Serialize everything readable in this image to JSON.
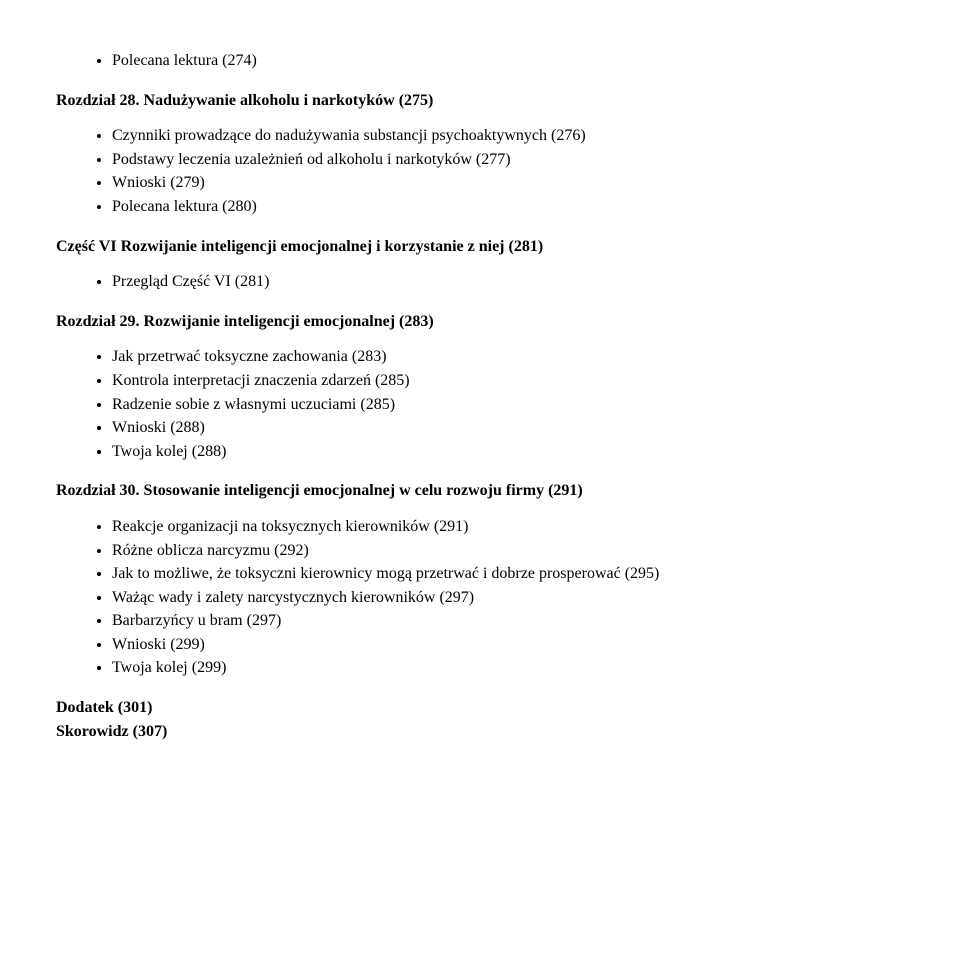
{
  "top_list": [
    "Polecana lektura (274)"
  ],
  "ch28": {
    "heading": "Rozdział 28. Nadużywanie alkoholu i narkotyków (275)",
    "items": [
      "Czynniki prowadzące do nadużywania substancji psychoaktywnych (276)",
      "Podstawy leczenia uzależnień od alkoholu i narkotyków (277)",
      "Wnioski (279)",
      "Polecana lektura (280)"
    ]
  },
  "part6": {
    "heading": "Część VI Rozwijanie inteligencji emocjonalnej i korzystanie z niej (281)",
    "items": [
      "Przegląd Część VI (281)"
    ]
  },
  "ch29": {
    "heading": "Rozdział 29. Rozwijanie inteligencji emocjonalnej (283)",
    "items": [
      "Jak przetrwać toksyczne zachowania (283)",
      "Kontrola interpretacji znaczenia zdarzeń (285)",
      "Radzenie sobie z własnymi uczuciami (285)",
      "Wnioski (288)",
      "Twoja kolej (288)"
    ]
  },
  "ch30": {
    "heading": "Rozdział 30. Stosowanie inteligencji emocjonalnej w celu rozwoju firmy (291)",
    "items": [
      "Reakcje organizacji na toksycznych kierowników (291)",
      "Różne oblicza narcyzmu (292)",
      "Jak to możliwe, że toksyczni kierownicy mogą przetrwać i dobrze prosperować (295)",
      "Ważąc wady i zalety narcystycznych kierowników (297)",
      "Barbarzyńcy u bram (297)",
      "Wnioski (299)",
      "Twoja kolej (299)"
    ]
  },
  "appendix": "Dodatek (301)",
  "index": "Skorowidz (307)"
}
